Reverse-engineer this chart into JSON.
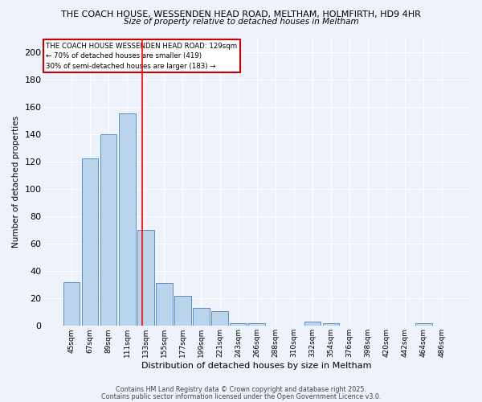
{
  "title1": "THE COACH HOUSE, WESSENDEN HEAD ROAD, MELTHAM, HOLMFIRTH, HD9 4HR",
  "title2": "Size of property relative to detached houses in Meltham",
  "xlabel": "Distribution of detached houses by size in Meltham",
  "ylabel": "Number of detached properties",
  "bar_labels": [
    "45sqm",
    "67sqm",
    "89sqm",
    "111sqm",
    "133sqm",
    "155sqm",
    "177sqm",
    "199sqm",
    "221sqm",
    "243sqm",
    "266sqm",
    "288sqm",
    "310sqm",
    "332sqm",
    "354sqm",
    "376sqm",
    "398sqm",
    "420sqm",
    "442sqm",
    "464sqm",
    "486sqm"
  ],
  "bar_values": [
    32,
    122,
    140,
    155,
    70,
    31,
    22,
    13,
    11,
    2,
    2,
    0,
    0,
    3,
    2,
    0,
    0,
    0,
    0,
    2,
    0
  ],
  "bar_color": "#bad4ec",
  "bar_edge_color": "#5b8fc9",
  "background_color": "#eef2fb",
  "grid_color": "#ffffff",
  "red_line_x": 3.82,
  "annotation_line1": "THE COACH HOUSE WESSENDEN HEAD ROAD: 129sqm",
  "annotation_line2": "← 70% of detached houses are smaller (419)",
  "annotation_line3": "30% of semi-detached houses are larger (183) →",
  "annotation_box_color": "#ffffff",
  "annotation_box_edge_color": "#cc0000",
  "footer1": "Contains HM Land Registry data © Crown copyright and database right 2025.",
  "footer2": "Contains public sector information licensed under the Open Government Licence v3.0.",
  "ylim": [
    0,
    210
  ],
  "yticks": [
    0,
    20,
    40,
    60,
    80,
    100,
    120,
    140,
    160,
    180,
    200
  ]
}
